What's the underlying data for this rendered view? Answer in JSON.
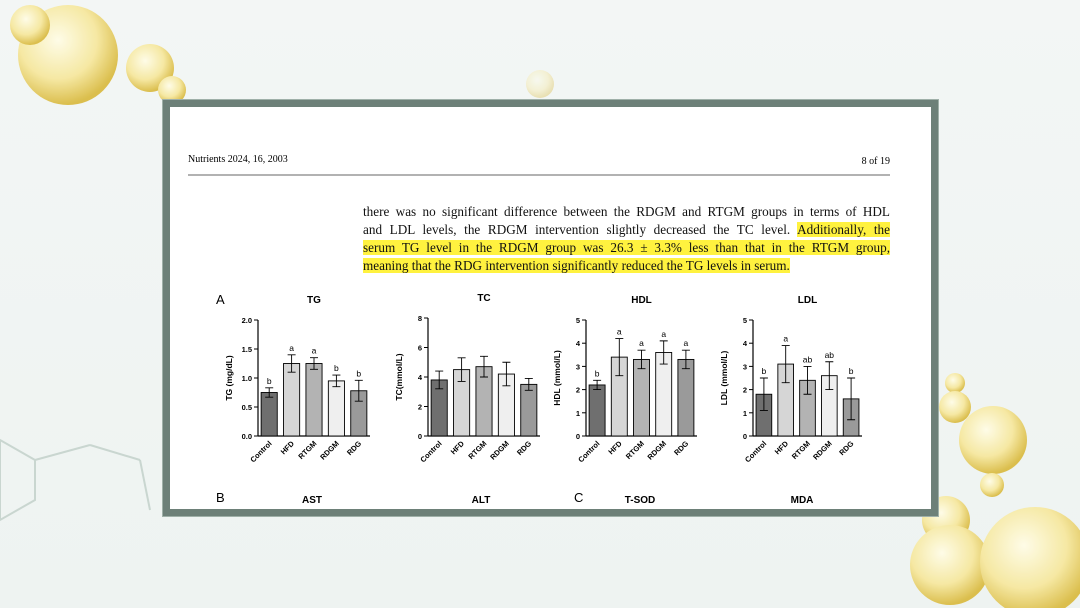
{
  "header": {
    "citation": "Nutrients 2024, 16, 2003",
    "page": "8 of 19"
  },
  "paragraph": [
    [
      {
        "text": "there was no significant difference between the RDGM and RTGM groups in terms of HDL",
        "highlight": false
      }
    ],
    [
      {
        "text": "and LDL levels, the RDGM intervention slightly decreased the TC level. ",
        "highlight": false
      },
      {
        "text": "Additionally, the",
        "highlight": true
      }
    ],
    [
      {
        "text": "serum TG level in the RDGM group was 26.3 ± 3.3% less than that in the RTGM group,",
        "highlight": true
      }
    ],
    [
      {
        "text": "meaning that the RDG intervention significantly reduced the TG levels in serum.",
        "highlight": true
      }
    ]
  ],
  "figure_labels": [
    "A",
    "B",
    "C"
  ],
  "next_row_titles": [
    "AST",
    "ALT",
    "T-SOD",
    "MDA"
  ],
  "chart_data": [
    {
      "type": "bar",
      "title": "TG",
      "y_label": "TG (mg/dL)",
      "categories": [
        "Control",
        "HFD",
        "RTGM",
        "RDGM",
        "RDG"
      ],
      "values": [
        0.75,
        1.25,
        1.25,
        0.95,
        0.78
      ],
      "errors": [
        0.08,
        0.15,
        0.1,
        0.1,
        0.18
      ],
      "annotations": [
        "b",
        "a",
        "a",
        "b",
        "b"
      ],
      "colors": [
        "#6f6f6f",
        "#d6d6d6",
        "#b3b3b3",
        "#efefef",
        "#9a9a9a"
      ],
      "ylim": [
        0,
        2
      ],
      "yticks": [
        {
          "value": 0,
          "label": "0.0"
        },
        {
          "value": 0.5,
          "label": "0.5"
        },
        {
          "value": 1,
          "label": "1.0"
        },
        {
          "value": 1.5,
          "label": "1.5"
        },
        {
          "value": 2,
          "label": "2.0"
        }
      ]
    },
    {
      "type": "bar",
      "title": "TC",
      "y_label": "TC(mmol/L)",
      "categories": [
        "Control",
        "HFD",
        "RTGM",
        "RDGM",
        "RDG"
      ],
      "values": [
        3.8,
        4.5,
        4.7,
        4.2,
        3.5
      ],
      "errors": [
        0.6,
        0.8,
        0.7,
        0.8,
        0.4
      ],
      "colors": [
        "#6f6f6f",
        "#d6d6d6",
        "#b3b3b3",
        "#efefef",
        "#9a9a9a"
      ],
      "ylim": [
        0,
        8
      ],
      "yticks": [
        0,
        2,
        4,
        6,
        8
      ]
    },
    {
      "type": "bar",
      "title": "HDL",
      "y_label": "HDL (mmol/L)",
      "categories": [
        "Control",
        "HFD",
        "RTGM",
        "RDGM",
        "RDG"
      ],
      "values": [
        2.2,
        3.4,
        3.3,
        3.6,
        3.3
      ],
      "errors": [
        0.2,
        0.8,
        0.4,
        0.5,
        0.4
      ],
      "annotations": [
        "b",
        "a",
        "a",
        "a",
        "a"
      ],
      "colors": [
        "#6f6f6f",
        "#d6d6d6",
        "#b3b3b3",
        "#efefef",
        "#9a9a9a"
      ],
      "ylim": [
        0,
        5
      ],
      "yticks": [
        0,
        1,
        2,
        3,
        4,
        5
      ]
    },
    {
      "type": "bar",
      "title": "LDL",
      "y_label": "LDL (mmol/L)",
      "categories": [
        "Control",
        "HFD",
        "RTGM",
        "RDGM",
        "RDG"
      ],
      "values": [
        1.8,
        3.1,
        2.4,
        2.6,
        1.6
      ],
      "errors": [
        0.7,
        0.8,
        0.6,
        0.6,
        0.9
      ],
      "annotations": [
        "b",
        "a",
        "ab",
        "ab",
        "b"
      ],
      "colors": [
        "#6f6f6f",
        "#d6d6d6",
        "#b3b3b3",
        "#efefef",
        "#9a9a9a"
      ],
      "ylim": [
        0,
        5
      ],
      "yticks": [
        0,
        1,
        2,
        3,
        4,
        5
      ]
    }
  ]
}
